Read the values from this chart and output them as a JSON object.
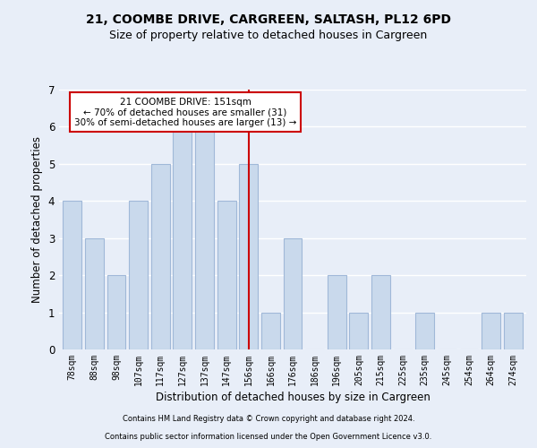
{
  "title": "21, COOMBE DRIVE, CARGREEN, SALTASH, PL12 6PD",
  "subtitle": "Size of property relative to detached houses in Cargreen",
  "xlabel": "Distribution of detached houses by size in Cargreen",
  "ylabel": "Number of detached properties",
  "categories": [
    "78sqm",
    "88sqm",
    "98sqm",
    "107sqm",
    "117sqm",
    "127sqm",
    "137sqm",
    "147sqm",
    "156sqm",
    "166sqm",
    "176sqm",
    "186sqm",
    "196sqm",
    "205sqm",
    "215sqm",
    "225sqm",
    "235sqm",
    "245sqm",
    "254sqm",
    "264sqm",
    "274sqm"
  ],
  "values": [
    4,
    3,
    2,
    4,
    5,
    6,
    6,
    4,
    5,
    1,
    3,
    0,
    2,
    1,
    2,
    0,
    1,
    0,
    0,
    1,
    1
  ],
  "bar_color": "#c9d9ec",
  "bar_edgecolor": "#a0b8d8",
  "highlight_index": 8,
  "highlight_color": "#cc0000",
  "ylim": [
    0,
    7
  ],
  "yticks": [
    0,
    1,
    2,
    3,
    4,
    5,
    6,
    7
  ],
  "annotation_text": "21 COOMBE DRIVE: 151sqm\n← 70% of detached houses are smaller (31)\n30% of semi-detached houses are larger (13) →",
  "annotation_box_color": "#ffffff",
  "annotation_box_edgecolor": "#cc0000",
  "footer_line1": "Contains HM Land Registry data © Crown copyright and database right 2024.",
  "footer_line2": "Contains public sector information licensed under the Open Government Licence v3.0.",
  "background_color": "#e8eef8",
  "grid_color": "#ffffff",
  "title_fontsize": 10,
  "subtitle_fontsize": 9
}
